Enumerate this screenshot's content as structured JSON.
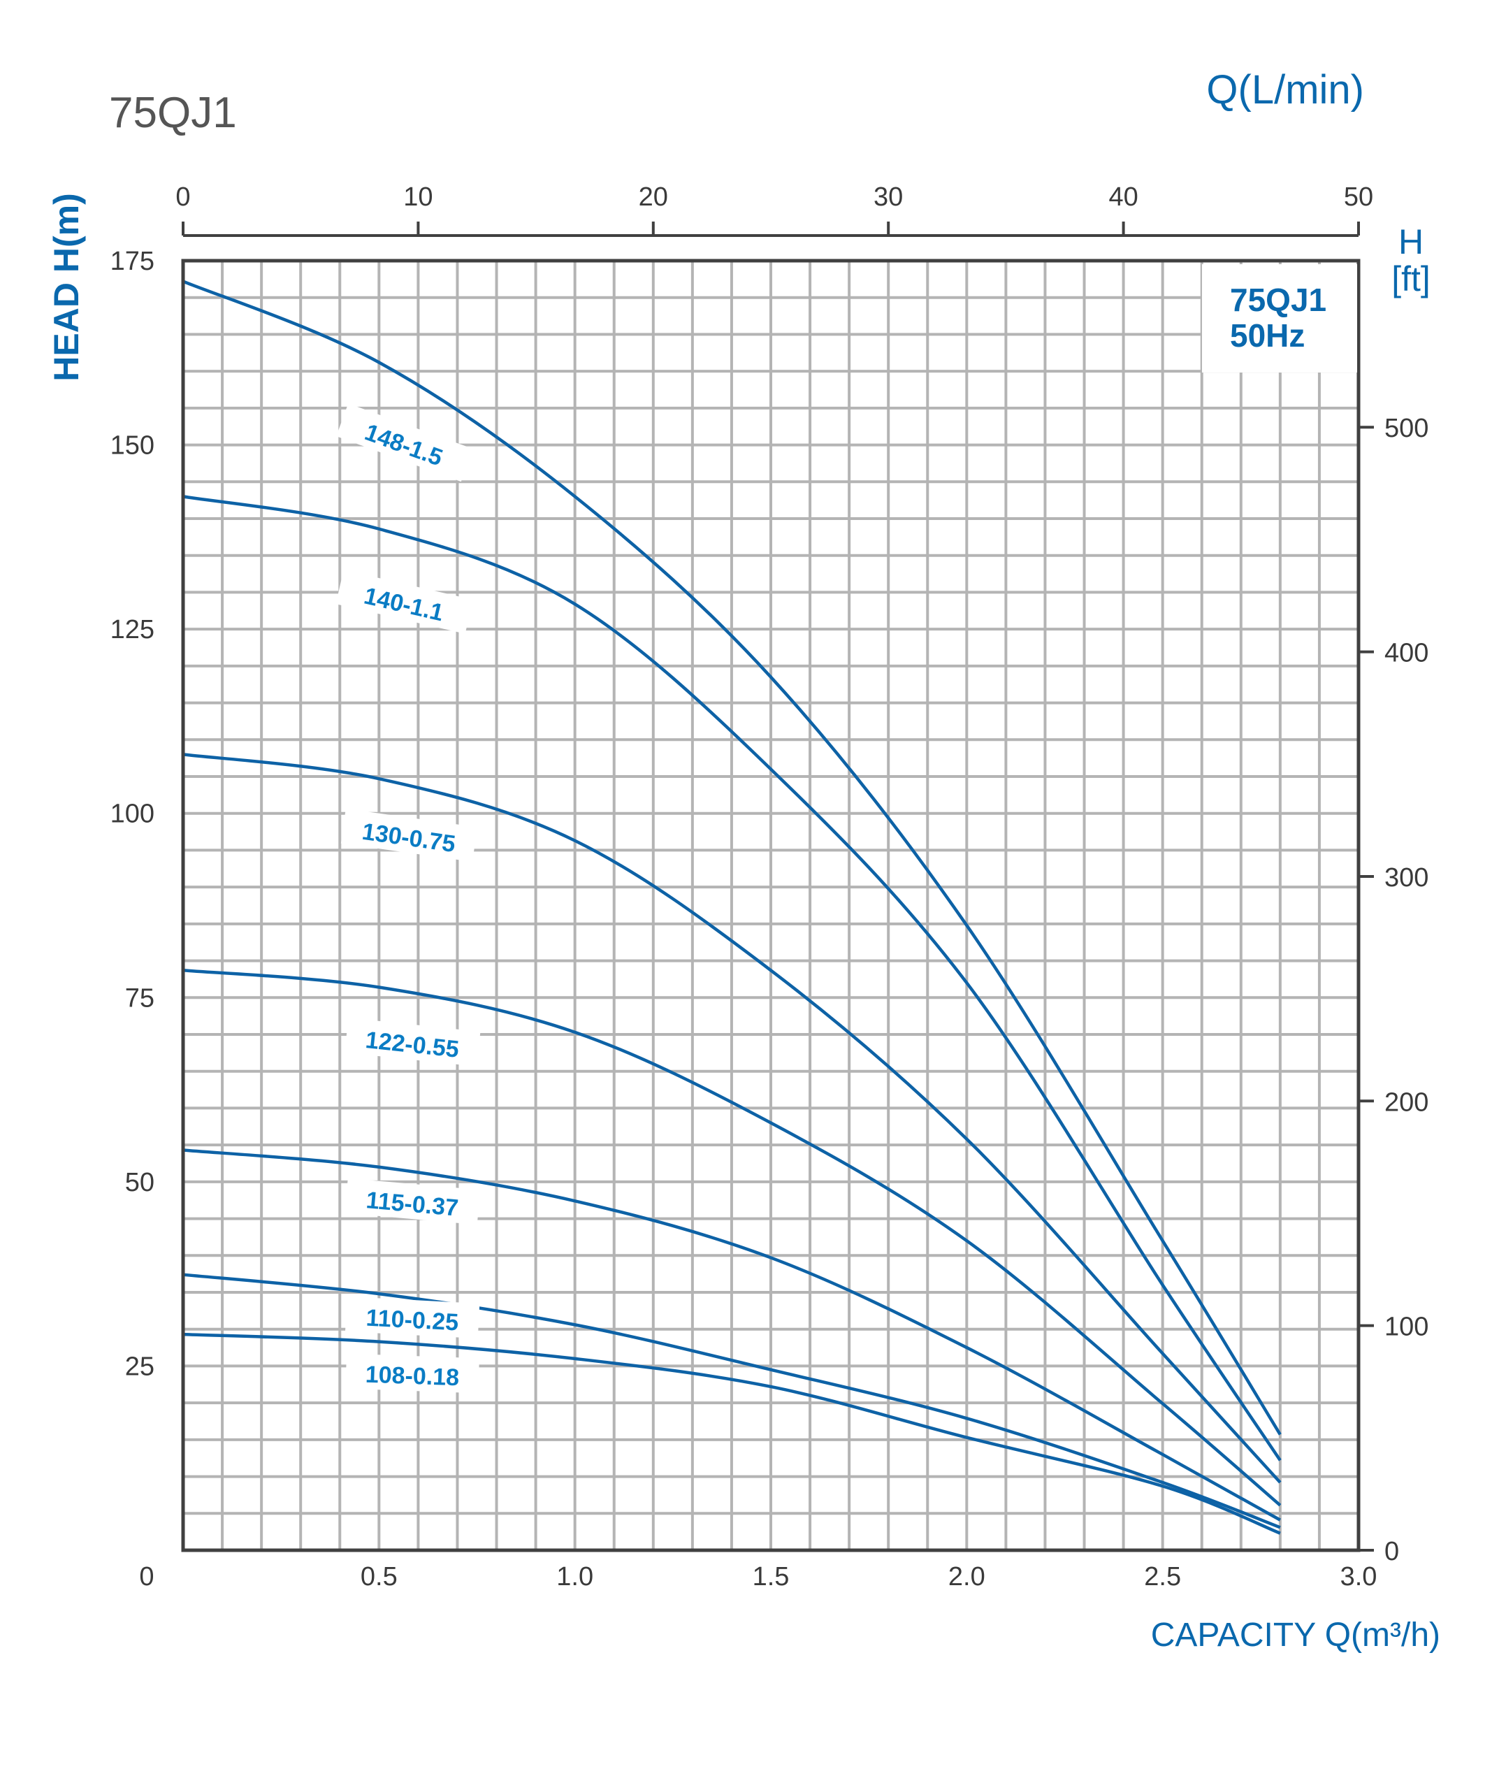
{
  "colors": {
    "curve": "#0d62a6",
    "label": "#0a7cc4",
    "axis_title": "#0a68ad",
    "grid": "#b4b4b4",
    "frame": "#404040",
    "title": "#555555"
  },
  "chart_data": {
    "type": "line",
    "title": "75QJ1",
    "xlabel": "CAPACITY Q(m³/h)",
    "ylabel": "HEAD H(m)",
    "x2label": "Q(L/min)",
    "y2label": [
      "H",
      "[ft]"
    ],
    "inset_label": [
      "75QJ1",
      "50Hz"
    ],
    "xlim": [
      0,
      3.0
    ],
    "ylim": [
      0,
      175
    ],
    "x2lim": [
      0,
      50
    ],
    "grid": true,
    "x_ticks": [
      "0",
      "0.5",
      "1.0",
      "1.5",
      "2.0",
      "2.5",
      "3.0"
    ],
    "y_ticks": [
      "0",
      "25",
      "50",
      "75",
      "100",
      "125",
      "150",
      "175"
    ],
    "x2_ticks": [
      "0",
      "10",
      "20",
      "30",
      "40",
      "50"
    ],
    "y2_ticks": [
      "0",
      "100",
      "200",
      "300",
      "400",
      "500"
    ],
    "x": [
      0,
      0.5,
      1.0,
      1.5,
      2.0,
      2.5,
      2.8
    ],
    "series": [
      {
        "name": "148-1.5",
        "values": [
          172.2,
          161.2,
          143.0,
          118.5,
          84.8,
          42.0,
          15.7
        ]
      },
      {
        "name": "140-1.1",
        "values": [
          143.0,
          138.6,
          128.4,
          106.0,
          77.0,
          36.0,
          12.2
        ]
      },
      {
        "name": "130-0.75",
        "values": [
          108.0,
          104.7,
          96.3,
          78.7,
          55.8,
          26.7,
          9.2
        ]
      },
      {
        "name": "122-0.55",
        "values": [
          78.7,
          76.4,
          70.3,
          58.0,
          42.0,
          19.9,
          6.1
        ]
      },
      {
        "name": "115-0.37",
        "values": [
          54.3,
          52.0,
          47.4,
          39.7,
          27.5,
          13.0,
          4.1
        ]
      },
      {
        "name": "110-0.25",
        "values": [
          37.4,
          34.8,
          30.6,
          24.5,
          17.9,
          9.2,
          3.1
        ]
      },
      {
        "name": "108-0.18",
        "values": [
          29.3,
          28.3,
          26.0,
          22.2,
          15.3,
          8.7,
          2.3
        ]
      }
    ]
  }
}
